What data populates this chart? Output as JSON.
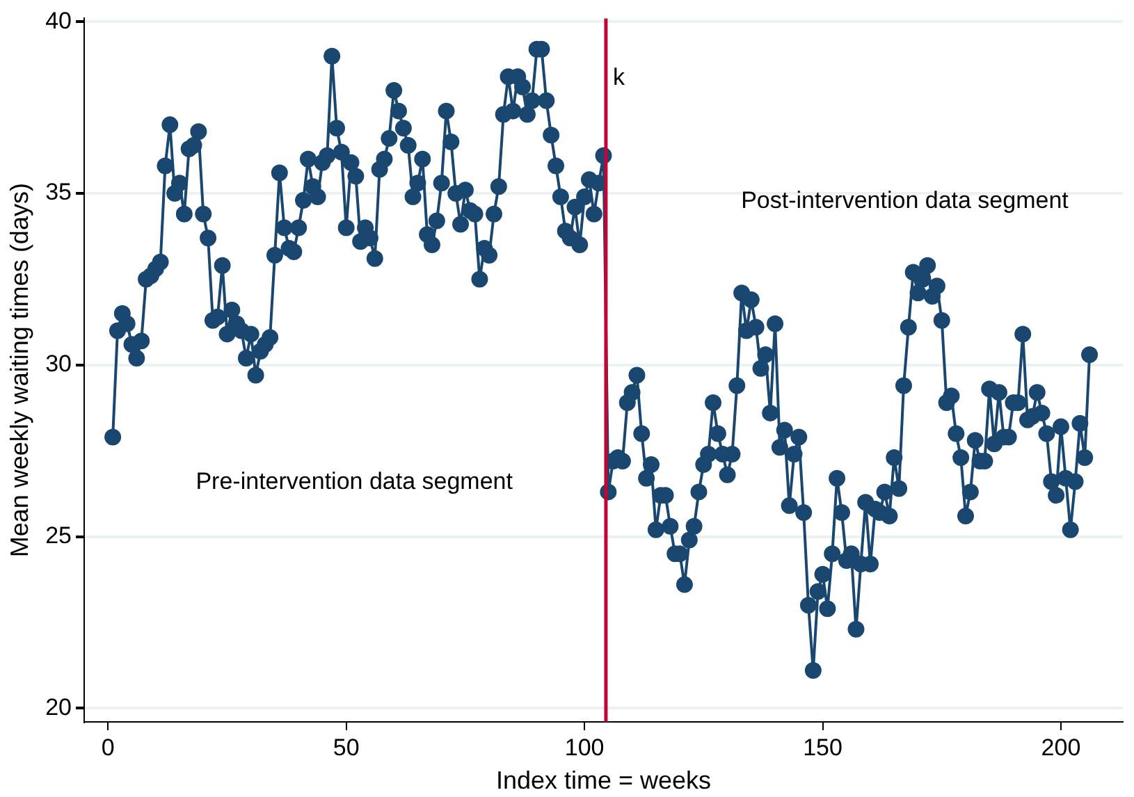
{
  "chart_data": {
    "type": "line",
    "xlabel": "Index time = weeks",
    "ylabel": "Mean weekly waiting times (days)",
    "x": [
      1,
      2,
      3,
      4,
      5,
      6,
      7,
      8,
      9,
      10,
      11,
      12,
      13,
      14,
      15,
      16,
      17,
      18,
      19,
      20,
      21,
      22,
      23,
      24,
      25,
      26,
      27,
      28,
      29,
      30,
      31,
      32,
      33,
      34,
      35,
      36,
      37,
      38,
      39,
      40,
      41,
      42,
      43,
      44,
      45,
      46,
      47,
      48,
      49,
      50,
      51,
      52,
      53,
      54,
      55,
      56,
      57,
      58,
      59,
      60,
      61,
      62,
      63,
      64,
      65,
      66,
      67,
      68,
      69,
      70,
      71,
      72,
      73,
      74,
      75,
      76,
      77,
      78,
      79,
      80,
      81,
      82,
      83,
      84,
      85,
      86,
      87,
      88,
      89,
      90,
      91,
      92,
      93,
      94,
      95,
      96,
      97,
      98,
      99,
      100,
      101,
      102,
      103,
      104,
      105,
      106,
      107,
      108,
      109,
      110,
      111,
      112,
      113,
      114,
      115,
      116,
      117,
      118,
      119,
      120,
      121,
      122,
      123,
      124,
      125,
      126,
      127,
      128,
      129,
      130,
      131,
      132,
      133,
      134,
      135,
      136,
      137,
      138,
      139,
      140,
      141,
      142,
      143,
      144,
      145,
      146,
      147,
      148,
      149,
      150,
      151,
      152,
      153,
      154,
      155,
      156,
      157,
      158,
      159,
      160,
      161,
      162,
      163,
      164,
      165,
      166,
      167,
      168,
      169,
      170,
      171,
      172,
      173,
      174,
      175,
      176,
      177,
      178,
      179,
      180,
      181,
      182,
      183,
      184,
      185,
      186,
      187,
      188,
      189,
      190,
      191,
      192,
      193,
      194,
      195,
      196,
      197,
      198,
      199,
      200,
      201,
      202,
      203,
      204,
      205,
      206
    ],
    "series": [
      {
        "color": "#1a476f",
        "values": [
          27.9,
          31.0,
          31.5,
          31.2,
          30.6,
          30.2,
          30.7,
          32.5,
          32.6,
          32.8,
          33.0,
          35.8,
          37.0,
          35.0,
          35.3,
          34.4,
          36.3,
          36.4,
          36.8,
          34.4,
          33.7,
          31.3,
          31.4,
          32.9,
          30.9,
          31.6,
          31.2,
          31.0,
          30.2,
          30.9,
          29.7,
          30.4,
          30.6,
          30.8,
          33.2,
          35.6,
          34.0,
          33.4,
          33.3,
          34.0,
          34.8,
          36.0,
          35.2,
          34.9,
          35.9,
          36.1,
          39.0,
          36.9,
          36.2,
          34.0,
          35.9,
          35.5,
          33.6,
          34.0,
          33.7,
          33.1,
          35.7,
          36.0,
          36.6,
          38.0,
          37.4,
          36.9,
          36.4,
          34.9,
          35.3,
          36.0,
          33.8,
          33.5,
          34.2,
          35.3,
          37.4,
          36.5,
          35.0,
          34.1,
          35.1,
          34.5,
          34.4,
          32.5,
          33.4,
          33.2,
          34.4,
          35.2,
          37.3,
          38.4,
          37.4,
          38.4,
          38.1,
          37.3,
          37.7,
          39.2,
          39.2,
          37.7,
          36.7,
          35.8,
          34.9,
          33.9,
          33.7,
          34.6,
          33.5,
          34.9,
          35.4,
          34.4,
          35.3,
          36.1,
          26.3,
          27.2,
          27.3,
          27.2,
          28.9,
          29.2,
          29.7,
          28.0,
          26.7,
          27.1,
          25.2,
          26.2,
          26.2,
          25.3,
          24.5,
          24.5,
          23.6,
          24.9,
          25.3,
          26.3,
          27.1,
          27.4,
          28.9,
          28.0,
          27.4,
          26.8,
          27.4,
          29.4,
          32.1,
          31.0,
          31.9,
          31.1,
          29.9,
          30.3,
          28.6,
          31.2,
          27.6,
          28.1,
          25.9,
          27.4,
          27.9,
          25.7,
          23.0,
          21.1,
          23.4,
          23.9,
          22.9,
          24.5,
          26.7,
          25.7,
          24.3,
          24.5,
          22.3,
          24.2,
          26.0,
          24.2,
          25.8,
          25.7,
          26.3,
          25.6,
          27.3,
          26.4,
          29.4,
          31.1,
          32.7,
          32.1,
          32.5,
          32.9,
          32.0,
          32.3,
          31.3,
          28.9,
          29.1,
          28.0,
          27.3,
          25.6,
          26.3,
          27.8,
          27.2,
          27.2,
          29.3,
          27.7,
          29.2,
          27.9,
          27.9,
          28.9,
          28.9,
          30.9,
          28.4,
          28.5,
          29.2,
          28.6,
          28.0,
          26.6,
          26.2,
          28.2,
          26.7,
          25.2,
          26.6,
          28.3,
          27.3,
          30.3
        ]
      }
    ],
    "xlim": [
      -5,
      213
    ],
    "xticks": [
      0,
      50,
      100,
      150,
      200
    ],
    "ylim": [
      19.6,
      40.1
    ],
    "yticks": [
      20,
      25,
      30,
      35,
      40
    ],
    "grid": "y",
    "legend": false,
    "marker": "circle",
    "line_style": "solid",
    "ref_lines": [
      {
        "axis": "x",
        "value": 104.5,
        "label": "k",
        "color": "#c10534"
      }
    ],
    "annotations": [
      "Pre-intervention data segment",
      "Post-intervention data segment"
    ]
  }
}
